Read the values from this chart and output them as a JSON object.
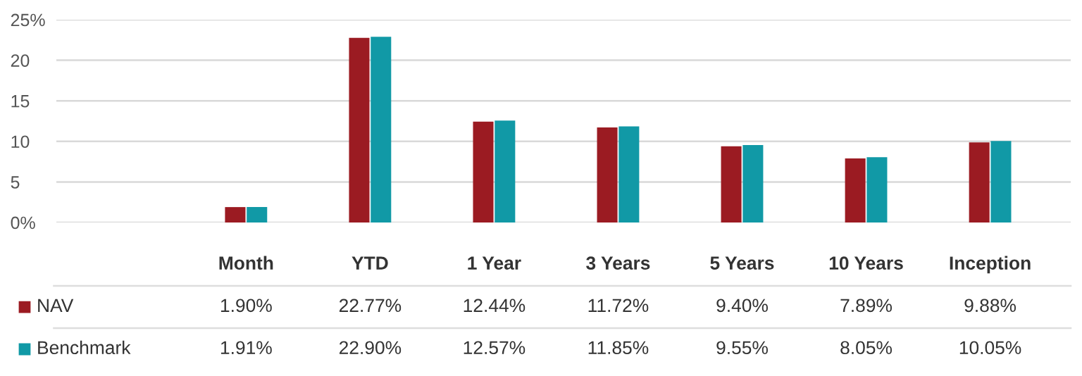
{
  "chart_data": {
    "type": "bar",
    "categories": [
      "Month",
      "YTD",
      "1 Year",
      "3 Years",
      "5 Years",
      "10 Years",
      "Inception"
    ],
    "series": [
      {
        "name": "NAV",
        "color": "#9b1b22",
        "values": [
          1.9,
          22.77,
          12.44,
          11.72,
          9.4,
          7.89,
          9.88
        ],
        "value_labels": [
          "1.90%",
          "22.77%",
          "12.44%",
          "11.72%",
          "9.40%",
          "7.89%",
          "9.88%"
        ]
      },
      {
        "name": "Benchmark",
        "color": "#1199a6",
        "values": [
          1.91,
          22.9,
          12.57,
          11.85,
          9.55,
          8.05,
          10.05
        ],
        "value_labels": [
          "1.91%",
          "22.90%",
          "12.57%",
          "11.85%",
          "9.55%",
          "8.05%",
          "10.05%"
        ]
      }
    ],
    "ylim": [
      0,
      25
    ],
    "yticks": [
      {
        "value": 0,
        "label": "0%"
      },
      5,
      10,
      15,
      20,
      {
        "value": 25,
        "label": "25%"
      }
    ],
    "grid": "y",
    "legend": "bottom left"
  }
}
